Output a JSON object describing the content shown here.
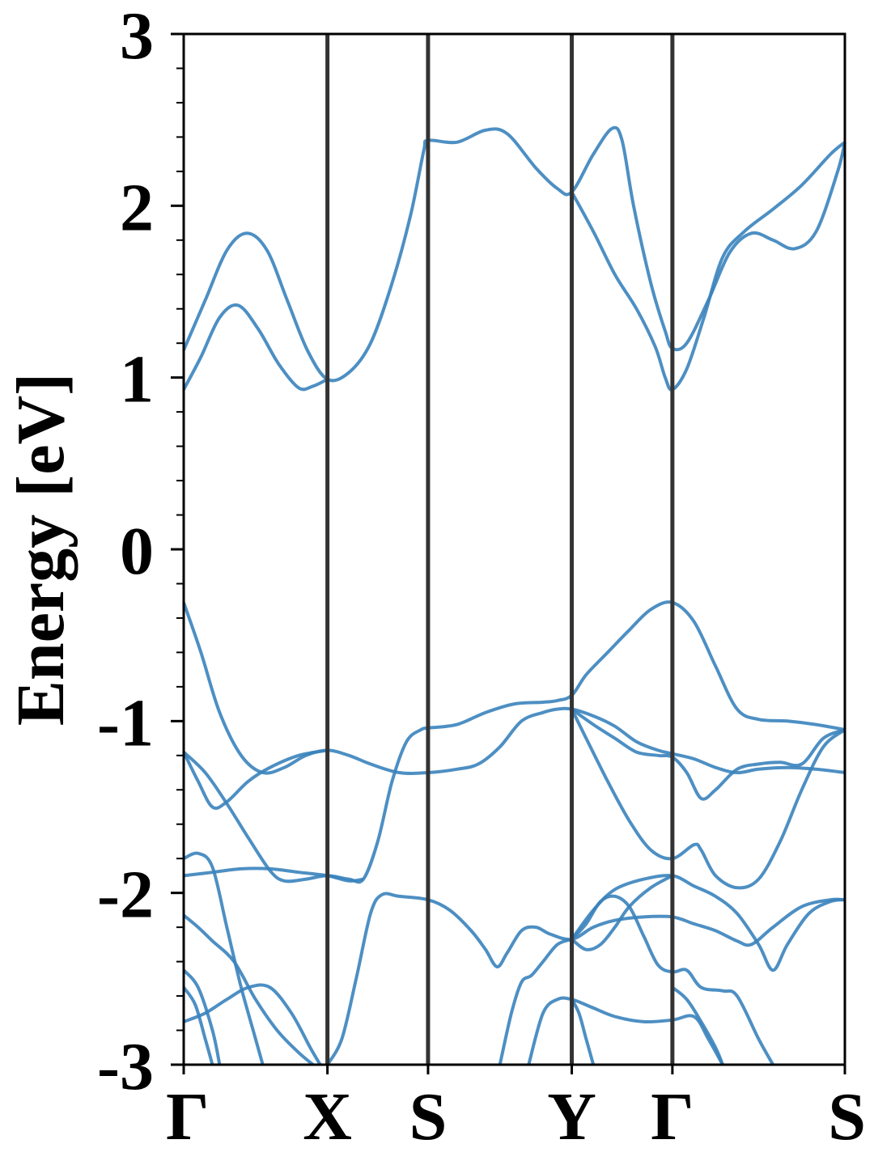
{
  "chart_data": {
    "type": "line",
    "title": "",
    "xlabel": "",
    "ylabel": "Energy [eV]",
    "ylim": [
      -3,
      3
    ],
    "y_major_ticks": [
      -3,
      -2,
      -1,
      0,
      1,
      2,
      3
    ],
    "y_tick_labels": [
      "-3",
      "-2",
      "-1",
      "0",
      "1",
      "2",
      "3"
    ],
    "y_minor_step": 0.2,
    "xlim": [
      0,
      4.6
    ],
    "high_symmetry_points": [
      {
        "label": "Γ",
        "x": 0.0
      },
      {
        "label": "X",
        "x": 1.0
      },
      {
        "label": "S",
        "x": 1.7
      },
      {
        "label": "Y",
        "x": 2.7
      },
      {
        "label": "Γ",
        "x": 3.4
      },
      {
        "label": "S",
        "x": 4.6
      }
    ],
    "grid": false,
    "line_color": "#3a83bd",
    "vline_color": "#333333",
    "series": [
      {
        "values": [
          [
            0.0,
            1.16
          ],
          [
            0.15,
            1.45
          ],
          [
            0.3,
            1.74
          ],
          [
            0.44,
            1.84
          ],
          [
            0.58,
            1.74
          ],
          [
            0.72,
            1.45
          ],
          [
            0.86,
            1.16
          ],
          [
            1.0,
            0.99
          ],
          [
            1.15,
            1.03
          ],
          [
            1.3,
            1.2
          ],
          [
            1.45,
            1.55
          ],
          [
            1.58,
            1.95
          ],
          [
            1.67,
            2.32
          ],
          [
            1.7,
            2.38
          ],
          [
            1.9,
            2.37
          ],
          [
            2.1,
            2.44
          ],
          [
            2.25,
            2.42
          ],
          [
            2.45,
            2.22
          ],
          [
            2.6,
            2.1
          ],
          [
            2.7,
            2.08
          ],
          [
            2.85,
            2.3
          ],
          [
            2.98,
            2.45
          ],
          [
            3.05,
            2.38
          ],
          [
            3.13,
            2.0
          ],
          [
            3.25,
            1.55
          ],
          [
            3.35,
            1.27
          ],
          [
            3.4,
            1.17
          ],
          [
            3.5,
            1.2
          ],
          [
            3.65,
            1.45
          ],
          [
            3.8,
            1.73
          ],
          [
            3.95,
            1.84
          ],
          [
            4.1,
            1.8
          ],
          [
            4.25,
            1.75
          ],
          [
            4.4,
            1.85
          ],
          [
            4.55,
            2.2
          ],
          [
            4.6,
            2.37
          ]
        ]
      },
      {
        "values": [
          [
            0.0,
            0.93
          ],
          [
            0.12,
            1.12
          ],
          [
            0.25,
            1.35
          ],
          [
            0.38,
            1.42
          ],
          [
            0.52,
            1.28
          ],
          [
            0.66,
            1.08
          ],
          [
            0.8,
            0.94
          ],
          [
            0.9,
            0.95
          ],
          [
            1.0,
            0.99
          ]
        ]
      },
      {
        "values": [
          [
            2.7,
            2.08
          ],
          [
            2.85,
            1.85
          ],
          [
            3.0,
            1.6
          ],
          [
            3.15,
            1.4
          ],
          [
            3.28,
            1.18
          ],
          [
            3.35,
            1.0
          ],
          [
            3.4,
            0.93
          ],
          [
            3.5,
            1.05
          ],
          [
            3.62,
            1.35
          ],
          [
            3.75,
            1.7
          ],
          [
            3.9,
            1.85
          ],
          [
            4.1,
            1.98
          ],
          [
            4.3,
            2.12
          ],
          [
            4.5,
            2.3
          ],
          [
            4.6,
            2.37
          ]
        ]
      },
      {
        "values": [
          [
            0.0,
            -0.31
          ],
          [
            0.12,
            -0.6
          ],
          [
            0.25,
            -0.95
          ],
          [
            0.4,
            -1.2
          ],
          [
            0.55,
            -1.3
          ],
          [
            0.7,
            -1.27
          ],
          [
            0.85,
            -1.2
          ],
          [
            1.0,
            -1.17
          ],
          [
            1.15,
            -1.2
          ],
          [
            1.3,
            -1.25
          ],
          [
            1.5,
            -1.3
          ],
          [
            1.7,
            -1.3
          ],
          [
            1.9,
            -1.28
          ],
          [
            2.05,
            -1.25
          ],
          [
            2.2,
            -1.15
          ],
          [
            2.35,
            -1.0
          ],
          [
            2.5,
            -0.95
          ],
          [
            2.6,
            -0.93
          ],
          [
            2.7,
            -0.93
          ],
          [
            2.85,
            -0.97
          ],
          [
            3.0,
            -1.03
          ],
          [
            3.15,
            -1.12
          ],
          [
            3.3,
            -1.17
          ],
          [
            3.4,
            -1.19
          ],
          [
            3.55,
            -1.22
          ],
          [
            3.7,
            -1.27
          ],
          [
            3.85,
            -1.3
          ],
          [
            4.0,
            -1.28
          ],
          [
            4.2,
            -1.27
          ],
          [
            4.4,
            -1.28
          ],
          [
            4.6,
            -1.3
          ]
        ]
      },
      {
        "values": [
          [
            1.7,
            -1.04
          ],
          [
            1.9,
            -1.02
          ],
          [
            2.1,
            -0.95
          ],
          [
            2.3,
            -0.9
          ],
          [
            2.5,
            -0.89
          ],
          [
            2.6,
            -0.88
          ],
          [
            2.7,
            -0.85
          ],
          [
            2.8,
            -0.73
          ],
          [
            2.95,
            -0.6
          ],
          [
            3.1,
            -0.47
          ],
          [
            3.25,
            -0.35
          ],
          [
            3.4,
            -0.31
          ],
          [
            3.55,
            -0.42
          ],
          [
            3.7,
            -0.68
          ],
          [
            3.85,
            -0.93
          ],
          [
            4.0,
            -0.99
          ],
          [
            4.2,
            -1.0
          ],
          [
            4.4,
            -1.02
          ],
          [
            4.6,
            -1.05
          ]
        ]
      },
      {
        "values": [
          [
            0.0,
            -1.18
          ],
          [
            0.1,
            -1.35
          ],
          [
            0.2,
            -1.5
          ],
          [
            0.3,
            -1.47
          ],
          [
            0.45,
            -1.35
          ],
          [
            0.6,
            -1.27
          ],
          [
            0.8,
            -1.2
          ],
          [
            1.0,
            -1.17
          ]
        ]
      },
      {
        "values": [
          [
            0.0,
            -1.18
          ],
          [
            0.15,
            -1.3
          ],
          [
            0.3,
            -1.48
          ],
          [
            0.45,
            -1.68
          ],
          [
            0.6,
            -1.87
          ],
          [
            0.7,
            -1.93
          ],
          [
            0.85,
            -1.92
          ],
          [
            1.0,
            -1.9
          ],
          [
            1.15,
            -1.92
          ],
          [
            1.25,
            -1.92
          ],
          [
            1.35,
            -1.7
          ],
          [
            1.45,
            -1.35
          ],
          [
            1.55,
            -1.12
          ],
          [
            1.65,
            -1.05
          ],
          [
            1.7,
            -1.04
          ]
        ]
      },
      {
        "values": [
          [
            2.7,
            -0.93
          ],
          [
            2.85,
            -1.02
          ],
          [
            3.0,
            -1.1
          ],
          [
            3.15,
            -1.18
          ],
          [
            3.3,
            -1.2
          ],
          [
            3.4,
            -1.21
          ],
          [
            3.5,
            -1.3
          ],
          [
            3.6,
            -1.45
          ],
          [
            3.7,
            -1.4
          ],
          [
            3.85,
            -1.28
          ],
          [
            4.0,
            -1.25
          ],
          [
            4.15,
            -1.24
          ],
          [
            4.3,
            -1.25
          ],
          [
            4.45,
            -1.1
          ],
          [
            4.6,
            -1.05
          ]
        ]
      },
      {
        "values": [
          [
            2.7,
            -0.93
          ],
          [
            2.8,
            -1.1
          ],
          [
            2.95,
            -1.35
          ],
          [
            3.1,
            -1.58
          ],
          [
            3.25,
            -1.75
          ],
          [
            3.4,
            -1.8
          ],
          [
            3.55,
            -1.72
          ],
          [
            3.6,
            -1.75
          ],
          [
            3.7,
            -1.9
          ],
          [
            3.85,
            -1.97
          ],
          [
            4.0,
            -1.92
          ],
          [
            4.15,
            -1.7
          ],
          [
            4.3,
            -1.4
          ],
          [
            4.45,
            -1.15
          ],
          [
            4.6,
            -1.05
          ]
        ]
      },
      {
        "values": [
          [
            0.0,
            -1.8
          ],
          [
            0.1,
            -1.77
          ],
          [
            0.2,
            -1.85
          ],
          [
            0.3,
            -2.2
          ],
          [
            0.4,
            -2.55
          ],
          [
            0.5,
            -2.85
          ],
          [
            0.55,
            -3.0
          ]
        ]
      },
      {
        "values": [
          [
            0.0,
            -1.9
          ],
          [
            0.2,
            -1.88
          ],
          [
            0.4,
            -1.86
          ],
          [
            0.6,
            -1.86
          ],
          [
            0.8,
            -1.88
          ],
          [
            1.0,
            -1.9
          ],
          [
            1.15,
            -1.93
          ],
          [
            1.25,
            -1.92
          ]
        ]
      },
      {
        "values": [
          [
            0.0,
            -2.13
          ],
          [
            0.1,
            -2.2
          ],
          [
            0.2,
            -2.28
          ],
          [
            0.35,
            -2.4
          ],
          [
            0.5,
            -2.62
          ],
          [
            0.65,
            -2.8
          ],
          [
            0.8,
            -2.93
          ],
          [
            0.9,
            -3.0
          ]
        ]
      },
      {
        "values": [
          [
            1.0,
            -3.0
          ],
          [
            1.1,
            -2.85
          ],
          [
            1.2,
            -2.5
          ],
          [
            1.3,
            -2.12
          ],
          [
            1.38,
            -2.01
          ],
          [
            1.5,
            -2.02
          ],
          [
            1.7,
            -2.04
          ],
          [
            1.85,
            -2.1
          ],
          [
            2.0,
            -2.22
          ],
          [
            2.1,
            -2.33
          ],
          [
            2.18,
            -2.43
          ],
          [
            2.25,
            -2.35
          ],
          [
            2.35,
            -2.22
          ],
          [
            2.45,
            -2.2
          ],
          [
            2.55,
            -2.24
          ],
          [
            2.7,
            -2.27
          ],
          [
            2.85,
            -2.2
          ],
          [
            3.0,
            -2.16
          ],
          [
            3.2,
            -2.14
          ],
          [
            3.4,
            -2.14
          ],
          [
            3.55,
            -2.18
          ],
          [
            3.7,
            -2.22
          ],
          [
            3.85,
            -2.28
          ],
          [
            3.95,
            -2.3
          ],
          [
            4.1,
            -2.2
          ],
          [
            4.3,
            -2.08
          ],
          [
            4.5,
            -2.04
          ],
          [
            4.6,
            -2.04
          ]
        ]
      },
      {
        "values": [
          [
            2.7,
            -2.27
          ],
          [
            2.85,
            -2.1
          ],
          [
            3.0,
            -1.98
          ],
          [
            3.2,
            -1.92
          ],
          [
            3.4,
            -1.9
          ],
          [
            3.55,
            -1.96
          ],
          [
            3.7,
            -2.02
          ],
          [
            3.85,
            -2.12
          ],
          [
            4.0,
            -2.3
          ],
          [
            4.1,
            -2.45
          ],
          [
            4.2,
            -2.3
          ],
          [
            4.35,
            -2.12
          ],
          [
            4.5,
            -2.05
          ],
          [
            4.6,
            -2.04
          ]
        ]
      },
      {
        "values": [
          [
            2.7,
            -2.27
          ],
          [
            2.8,
            -2.33
          ],
          [
            2.9,
            -2.3
          ],
          [
            3.0,
            -2.2
          ],
          [
            3.1,
            -2.08
          ],
          [
            3.25,
            -1.97
          ],
          [
            3.4,
            -1.9
          ]
        ]
      },
      {
        "values": [
          [
            2.7,
            -2.27
          ],
          [
            2.8,
            -2.18
          ],
          [
            2.9,
            -2.05
          ],
          [
            3.0,
            -2.02
          ],
          [
            3.1,
            -2.08
          ],
          [
            3.2,
            -2.25
          ],
          [
            3.3,
            -2.42
          ],
          [
            3.4,
            -2.46
          ],
          [
            3.5,
            -2.45
          ],
          [
            3.6,
            -2.55
          ],
          [
            3.75,
            -2.57
          ],
          [
            3.85,
            -2.6
          ],
          [
            4.0,
            -2.85
          ],
          [
            4.1,
            -3.0
          ]
        ]
      },
      {
        "values": [
          [
            2.2,
            -3.0
          ],
          [
            2.28,
            -2.7
          ],
          [
            2.35,
            -2.52
          ],
          [
            2.42,
            -2.48
          ],
          [
            2.5,
            -2.4
          ],
          [
            2.6,
            -2.3
          ],
          [
            2.7,
            -2.27
          ]
        ]
      },
      {
        "values": [
          [
            2.4,
            -3.0
          ],
          [
            2.5,
            -2.7
          ],
          [
            2.6,
            -2.62
          ],
          [
            2.7,
            -2.62
          ],
          [
            2.85,
            -2.67
          ],
          [
            3.0,
            -2.72
          ],
          [
            3.2,
            -2.75
          ],
          [
            3.4,
            -2.74
          ],
          [
            3.55,
            -2.72
          ],
          [
            3.65,
            -2.85
          ],
          [
            3.75,
            -3.0
          ]
        ]
      },
      {
        "values": [
          [
            2.7,
            -2.62
          ],
          [
            2.75,
            -2.7
          ],
          [
            2.8,
            -2.85
          ],
          [
            2.85,
            -3.0
          ]
        ]
      },
      {
        "values": [
          [
            3.4,
            -2.55
          ],
          [
            3.5,
            -2.62
          ],
          [
            3.6,
            -2.75
          ],
          [
            3.7,
            -2.9
          ],
          [
            3.75,
            -3.0
          ]
        ]
      },
      {
        "values": [
          [
            0.0,
            -2.45
          ],
          [
            0.1,
            -2.55
          ],
          [
            0.2,
            -2.8
          ],
          [
            0.25,
            -3.0
          ]
        ]
      },
      {
        "values": [
          [
            0.0,
            -2.55
          ],
          [
            0.08,
            -2.65
          ],
          [
            0.15,
            -2.85
          ],
          [
            0.2,
            -3.0
          ]
        ]
      },
      {
        "values": [
          [
            0.0,
            -2.75
          ],
          [
            0.15,
            -2.7
          ],
          [
            0.3,
            -2.62
          ],
          [
            0.45,
            -2.55
          ],
          [
            0.6,
            -2.55
          ],
          [
            0.75,
            -2.7
          ],
          [
            0.88,
            -2.9
          ],
          [
            0.95,
            -3.0
          ]
        ]
      }
    ]
  }
}
